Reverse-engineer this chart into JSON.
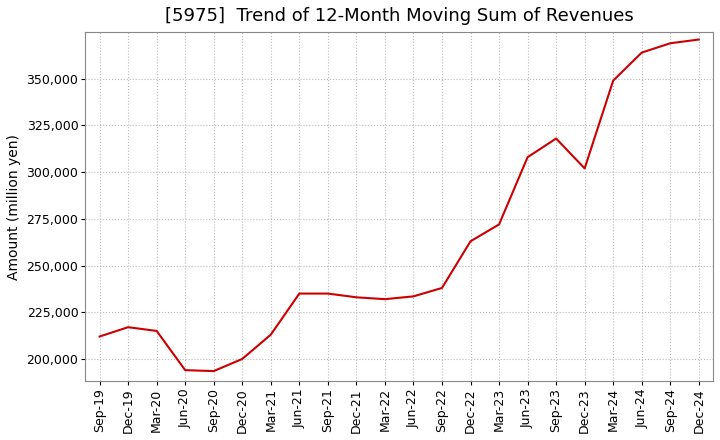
{
  "title": "[5975]  Trend of 12-Month Moving Sum of Revenues",
  "ylabel": "Amount (million yen)",
  "line_color": "#cc0000",
  "background_color": "#ffffff",
  "plot_bg_color": "#ffffff",
  "grid_color": "#bbbbbb",
  "x_labels": [
    "Sep-19",
    "Dec-19",
    "Mar-20",
    "Jun-20",
    "Sep-20",
    "Dec-20",
    "Mar-21",
    "Jun-21",
    "Sep-21",
    "Dec-21",
    "Mar-22",
    "Jun-22",
    "Sep-22",
    "Dec-22",
    "Mar-23",
    "Jun-23",
    "Sep-23",
    "Dec-23",
    "Mar-24",
    "Jun-24",
    "Sep-24",
    "Dec-24"
  ],
  "values": [
    212000,
    217000,
    215000,
    194000,
    193500,
    200000,
    213000,
    235000,
    235000,
    233000,
    232000,
    233500,
    238000,
    263000,
    272000,
    308000,
    318000,
    302000,
    349000,
    364000,
    369000,
    371000
  ],
  "ylim": [
    188000,
    375000
  ],
  "yticks": [
    200000,
    225000,
    250000,
    275000,
    300000,
    325000,
    350000
  ],
  "title_fontsize": 13,
  "axis_label_fontsize": 10,
  "tick_fontsize": 9
}
